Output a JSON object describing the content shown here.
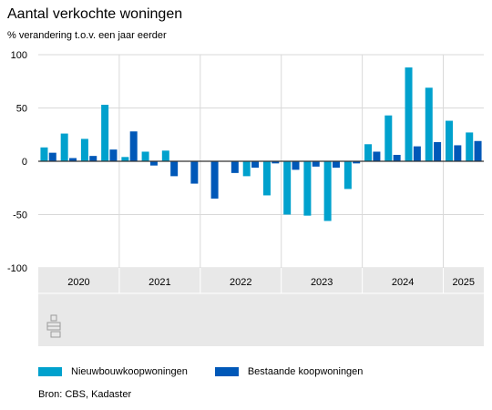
{
  "title": "Aantal verkochte woningen",
  "subtitle": "% verandering t.o.v. een jaar eerder",
  "source": "Bron: CBS, Kadaster",
  "colors": {
    "series_new": "#00a1cd",
    "series_existing": "#0058b8",
    "axis_panel": "#e8e8e8",
    "grid": "#d9d9d9"
  },
  "chart_data": {
    "type": "bar",
    "x": [
      "2020 Q1",
      "2020 Q2",
      "2020 Q3",
      "2020 Q4",
      "2021 Q1",
      "2021 Q2",
      "2021 Q3",
      "2021 Q4",
      "2022 Q1",
      "2022 Q2",
      "2022 Q3",
      "2022 Q4",
      "2023 Q1",
      "2023 Q2",
      "2023 Q3",
      "2023 Q4",
      "2024 Q1",
      "2024 Q2",
      "2024 Q3",
      "2024 Q4",
      "2025 Q1",
      "2025 Q2"
    ],
    "year_labels": [
      {
        "label": "2020",
        "quarters": 4
      },
      {
        "label": "2021",
        "quarters": 4
      },
      {
        "label": "2022",
        "quarters": 4
      },
      {
        "label": "2023",
        "quarters": 4
      },
      {
        "label": "2024",
        "quarters": 4
      },
      {
        "label": "2025",
        "quarters": 2
      }
    ],
    "series": [
      {
        "name": "Nieuwbouwkoopwoningen",
        "color": "#00a1cd",
        "values": [
          13,
          26,
          21,
          53,
          4,
          9,
          10,
          null,
          null,
          null,
          -14,
          -32,
          -50,
          -51,
          -56,
          -26,
          16,
          43,
          88,
          69,
          38,
          27
        ]
      },
      {
        "name": "Bestaande koopwoningen",
        "color": "#0058b8",
        "values": [
          8,
          3,
          5,
          11,
          28,
          -4,
          -14,
          -21,
          -35,
          -11,
          -6,
          -2,
          -8,
          -5,
          -6,
          -2,
          9,
          6,
          14,
          18,
          15,
          19
        ]
      }
    ],
    "ylim": [
      -100,
      100
    ],
    "yticks": [
      -100,
      -50,
      0,
      50,
      100
    ],
    "grid": true,
    "legend_position": "bottom"
  }
}
